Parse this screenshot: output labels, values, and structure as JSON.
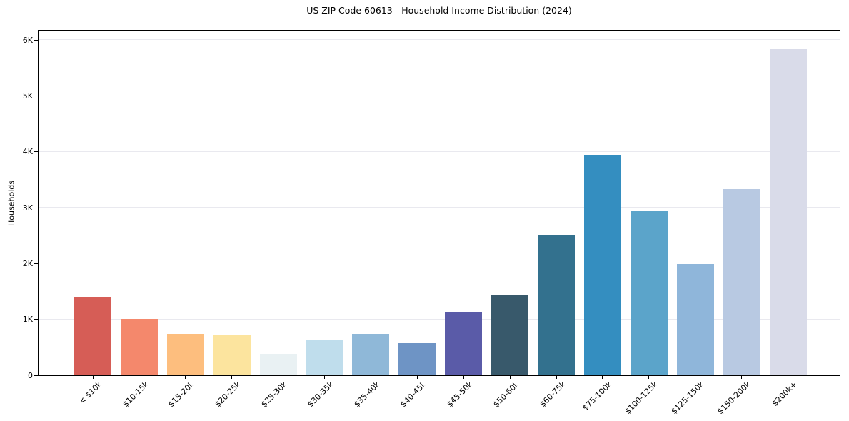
{
  "chart_data": {
    "type": "bar",
    "title": "US ZIP Code 60613 - Household Income Distribution (2024)",
    "xlabel": "",
    "ylabel": "Households",
    "categories": [
      "< $10k",
      "$10-15k",
      "$15-20k",
      "$20-25k",
      "$25-30k",
      "$30-35k",
      "$35-40k",
      "$40-45k",
      "$45-50k",
      "$50-60k",
      "$60-75k",
      "$75-100k",
      "$100-125k",
      "$125-150k",
      "$150-200k",
      "$200k+"
    ],
    "values": [
      1410,
      1015,
      745,
      725,
      380,
      640,
      745,
      575,
      1140,
      1445,
      2510,
      3950,
      2935,
      1990,
      3340,
      5840
    ],
    "bar_colors": [
      "#d65d56",
      "#f4886c",
      "#fdbe7e",
      "#fce49e",
      "#e9f1f3",
      "#bfddec",
      "#8fb8d8",
      "#6e94c5",
      "#5a5ba8",
      "#38596b",
      "#33718e",
      "#348ec0",
      "#5ba4ca",
      "#8fb6da",
      "#b8c9e2",
      "#d9dbe9"
    ],
    "ytick_labels": [
      "0",
      "1K",
      "2K",
      "3K",
      "4K",
      "5K",
      "6K"
    ],
    "ytick_values": [
      0,
      1000,
      2000,
      3000,
      4000,
      5000,
      6000
    ],
    "ylim": [
      0,
      6170
    ],
    "grid": "horizontal",
    "gridline_color": "#e9e9ef",
    "axis_color": "#000000",
    "background_color": "#ffffff",
    "legend": "none",
    "xtick_rotation_deg": 45
  }
}
